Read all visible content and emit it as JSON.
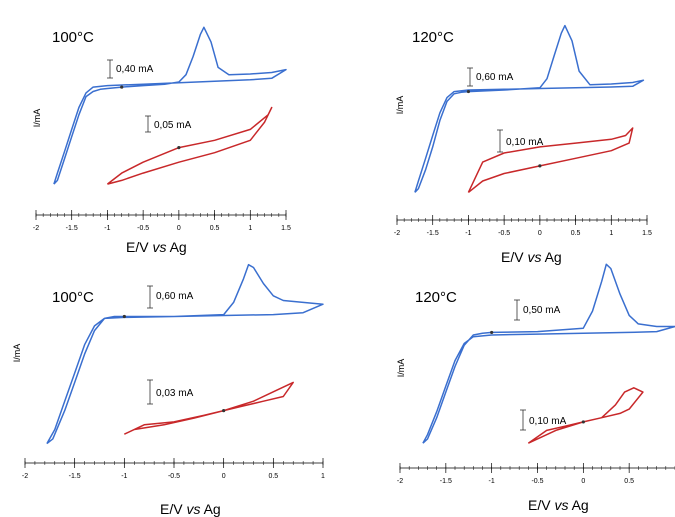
{
  "colors": {
    "blue_trace": "#3a6fcf",
    "red_trace": "#c8282a",
    "axis": "#000000"
  },
  "chart_data": [
    {
      "type": "line",
      "panel": "top-left",
      "temperature": "100°C",
      "ylabel": "I/mA",
      "xlabel": "E/V vs Ag",
      "xticks": [
        "-2",
        "-1.5",
        "-1",
        "-0.5",
        "0",
        "0.5",
        "1",
        "1.5"
      ],
      "xlim": [
        -2,
        1.5
      ],
      "scale_bars": [
        "0,40 mA",
        "0,05 mA"
      ],
      "series": [
        {
          "color": "blue",
          "x": [
            -1.75,
            -1.7,
            -1.6,
            -1.5,
            -1.4,
            -1.3,
            -1.2,
            -1.1,
            -1.0,
            -0.8,
            -0.5,
            -0.2,
            0.0,
            0.1,
            0.2,
            0.3,
            0.35,
            0.45,
            0.55,
            0.7,
            1.0,
            1.3,
            1.5,
            1.3,
            1.0,
            0.5,
            0.0,
            -0.5,
            -1.0,
            -1.2,
            -1.3,
            -1.4,
            -1.5,
            -1.6,
            -1.7,
            -1.75
          ],
          "y": [
            -0.55,
            -0.5,
            -0.2,
            0.1,
            0.4,
            0.65,
            0.72,
            0.75,
            0.76,
            0.78,
            0.8,
            0.82,
            0.85,
            0.95,
            1.2,
            1.5,
            1.6,
            1.4,
            1.05,
            0.95,
            0.96,
            0.98,
            1.02,
            0.9,
            0.88,
            0.86,
            0.84,
            0.82,
            0.8,
            0.78,
            0.7,
            0.5,
            0.2,
            -0.1,
            -0.4,
            -0.55
          ]
        },
        {
          "color": "red",
          "x": [
            -1.0,
            -0.8,
            -0.5,
            0.0,
            0.5,
            1.0,
            1.25,
            1.3,
            1.2,
            1.0,
            0.5,
            0.0,
            -0.5,
            -0.8,
            -1.0
          ],
          "y": [
            -0.55,
            -0.4,
            -0.25,
            -0.05,
            0.05,
            0.2,
            0.4,
            0.5,
            0.3,
            0.05,
            -0.12,
            -0.25,
            -0.4,
            -0.5,
            -0.55
          ]
        }
      ]
    },
    {
      "type": "line",
      "panel": "top-right",
      "temperature": "120°C",
      "ylabel": "I/mA",
      "xlabel": "E/V vs Ag",
      "xticks": [
        "-2",
        "-1.5",
        "-1",
        "-0.5",
        "0",
        "0.5",
        "1",
        "1.5"
      ],
      "xlim": [
        -2,
        1.5
      ],
      "scale_bars": [
        "0,60 mA",
        "0,10 mA"
      ],
      "series": [
        {
          "color": "blue",
          "x": [
            -1.75,
            -1.7,
            -1.6,
            -1.5,
            -1.4,
            -1.3,
            -1.2,
            -1.1,
            -1.0,
            -0.5,
            0.0,
            0.1,
            0.2,
            0.3,
            0.35,
            0.45,
            0.55,
            0.7,
            1.0,
            1.3,
            1.45,
            1.3,
            1.0,
            0.5,
            0.0,
            -0.5,
            -1.0,
            -1.2,
            -1.3,
            -1.4,
            -1.5,
            -1.6,
            -1.7,
            -1.75
          ],
          "y": [
            -0.6,
            -0.55,
            -0.3,
            0.0,
            0.35,
            0.6,
            0.7,
            0.72,
            0.73,
            0.75,
            0.78,
            0.9,
            1.2,
            1.5,
            1.6,
            1.4,
            1.0,
            0.82,
            0.83,
            0.85,
            0.88,
            0.8,
            0.79,
            0.78,
            0.77,
            0.76,
            0.75,
            0.73,
            0.65,
            0.45,
            0.15,
            -0.15,
            -0.45,
            -0.6
          ]
        },
        {
          "color": "red",
          "x": [
            -1.0,
            -0.8,
            -0.5,
            0.0,
            0.5,
            1.0,
            1.25,
            1.3,
            1.2,
            1.0,
            0.5,
            0.0,
            -0.5,
            -0.8,
            -1.0
          ],
          "y": [
            -0.6,
            -0.45,
            -0.35,
            -0.25,
            -0.15,
            -0.05,
            0.05,
            0.25,
            0.15,
            0.1,
            0.05,
            0.0,
            -0.08,
            -0.2,
            -0.6
          ]
        }
      ]
    },
    {
      "type": "line",
      "panel": "bottom-left",
      "temperature": "100°C",
      "ylabel": "I/mA",
      "xlabel": "E/V vs Ag",
      "xticks": [
        "-2",
        "-1.5",
        "-1",
        "-0.5",
        "0",
        "0.5",
        "1"
      ],
      "xlim": [
        -2,
        1
      ],
      "scale_bars": [
        "0,60 mA",
        "0,03 mA"
      ],
      "series": [
        {
          "color": "blue",
          "x": [
            -1.78,
            -1.72,
            -1.6,
            -1.5,
            -1.4,
            -1.3,
            -1.2,
            -1.1,
            -1.0,
            -0.5,
            0.0,
            0.1,
            0.2,
            0.25,
            0.3,
            0.4,
            0.5,
            0.6,
            0.8,
            1.0,
            0.8,
            0.5,
            0.0,
            -0.5,
            -1.0,
            -1.2,
            -1.3,
            -1.4,
            -1.5,
            -1.6,
            -1.7,
            -1.78
          ],
          "y": [
            -0.65,
            -0.6,
            -0.3,
            0.0,
            0.3,
            0.55,
            0.68,
            0.7,
            0.7,
            0.7,
            0.72,
            0.85,
            1.1,
            1.25,
            1.22,
            1.05,
            0.92,
            0.87,
            0.85,
            0.83,
            0.74,
            0.72,
            0.71,
            0.7,
            0.69,
            0.68,
            0.6,
            0.4,
            0.1,
            -0.2,
            -0.5,
            -0.65
          ]
        },
        {
          "color": "red",
          "x": [
            -1.0,
            -0.8,
            -0.5,
            -0.2,
            0.0,
            0.3,
            0.5,
            0.7,
            0.6,
            0.4,
            0.2,
            0.0,
            -0.3,
            -0.6,
            -0.9,
            -1.0
          ],
          "y": [
            -0.55,
            -0.45,
            -0.42,
            -0.35,
            -0.3,
            -0.2,
            -0.1,
            0.0,
            -0.15,
            -0.2,
            -0.25,
            -0.3,
            -0.38,
            -0.45,
            -0.5,
            -0.55
          ]
        }
      ]
    },
    {
      "type": "line",
      "panel": "bottom-right",
      "temperature": "120°C",
      "ylabel": "I/mA",
      "xlabel": "E/V vs Ag",
      "xticks": [
        "-2",
        "-1.5",
        "-1",
        "-0.5",
        "0",
        "0.5"
      ],
      "xlim": [
        -2,
        1
      ],
      "scale_bars": [
        "0,50 mA",
        "0,10 mA"
      ],
      "series": [
        {
          "color": "blue",
          "x": [
            -1.75,
            -1.7,
            -1.6,
            -1.5,
            -1.4,
            -1.3,
            -1.2,
            -1.1,
            -1.0,
            -0.5,
            0.0,
            0.1,
            0.2,
            0.25,
            0.3,
            0.4,
            0.5,
            0.6,
            0.8,
            1.0,
            0.8,
            0.5,
            0.0,
            -0.5,
            -1.0,
            -1.2,
            -1.3,
            -1.4,
            -1.5,
            -1.6,
            -1.7,
            -1.75
          ],
          "y": [
            -0.55,
            -0.5,
            -0.25,
            0.05,
            0.35,
            0.6,
            0.72,
            0.74,
            0.75,
            0.76,
            0.8,
            1.0,
            1.35,
            1.55,
            1.5,
            1.2,
            0.95,
            0.85,
            0.82,
            0.82,
            0.76,
            0.75,
            0.74,
            0.73,
            0.72,
            0.7,
            0.62,
            0.42,
            0.12,
            -0.18,
            -0.45,
            -0.55
          ]
        },
        {
          "color": "red",
          "x": [
            -0.6,
            -0.4,
            -0.2,
            0.0,
            0.2,
            0.35,
            0.45,
            0.55,
            0.65,
            0.5,
            0.4,
            0.2,
            0.0,
            -0.3,
            -0.6
          ],
          "y": [
            -0.55,
            -0.4,
            -0.35,
            -0.3,
            -0.25,
            -0.1,
            0.05,
            0.1,
            0.05,
            -0.15,
            -0.2,
            -0.25,
            -0.3,
            -0.4,
            -0.55
          ]
        }
      ]
    }
  ]
}
